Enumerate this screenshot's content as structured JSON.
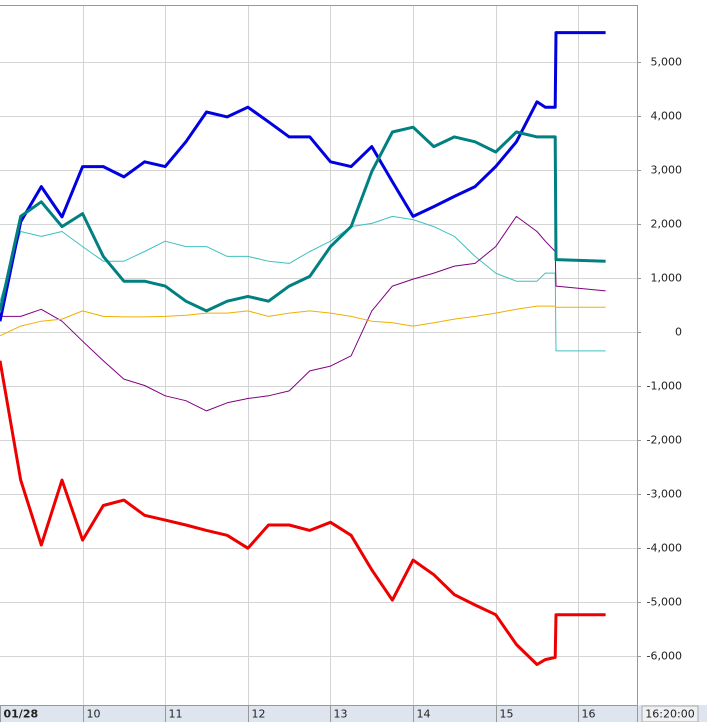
{
  "chart_data": {
    "type": "line",
    "x": [
      9,
      9.25,
      9.5,
      9.75,
      10,
      10.25,
      10.5,
      10.75,
      11,
      11.25,
      11.5,
      11.75,
      12,
      12.25,
      12.5,
      12.75,
      13,
      13.25,
      13.5,
      13.75,
      14,
      14.25,
      14.5,
      14.75,
      15,
      15.25,
      15.5,
      15.6,
      15.72,
      15.73,
      16.33
    ],
    "series": [
      {
        "color": "#0000e0",
        "width": 3,
        "values": [
          200,
          2040,
          2690,
          2130,
          3060,
          3060,
          2870,
          3150,
          3060,
          3520,
          4070,
          3980,
          4160,
          3890,
          3610,
          3610,
          3150,
          3060,
          3430,
          2780,
          2140,
          2320,
          2510,
          2690,
          3060,
          3520,
          4260,
          4160,
          4160,
          5540,
          5540
        ]
      },
      {
        "color": "#ee0000",
        "width": 3,
        "values": [
          -530,
          -2740,
          -3940,
          -2740,
          -3850,
          -3210,
          -3110,
          -3390,
          -3480,
          -3570,
          -3670,
          -3760,
          -4000,
          -3570,
          -3570,
          -3670,
          -3520,
          -3760,
          -4400,
          -4960,
          -4220,
          -4490,
          -4860,
          -5050,
          -5230,
          -5780,
          -6150,
          -6060,
          -6020,
          -5230,
          -5230
        ]
      },
      {
        "color": "#008080",
        "width": 3,
        "values": [
          390,
          2140,
          2410,
          1950,
          2190,
          1400,
          940,
          940,
          850,
          570,
          390,
          570,
          660,
          570,
          850,
          1030,
          1580,
          1950,
          2970,
          3700,
          3790,
          3430,
          3610,
          3520,
          3330,
          3700,
          3610,
          3610,
          3610,
          1340,
          1310
        ]
      },
      {
        "color": "#40c0c0",
        "width": 1,
        "values": [
          570,
          1860,
          1770,
          1860,
          1580,
          1310,
          1310,
          1490,
          1680,
          1580,
          1580,
          1400,
          1400,
          1310,
          1270,
          1490,
          1680,
          1950,
          2010,
          2140,
          2080,
          1950,
          1770,
          1400,
          1090,
          940,
          940,
          1090,
          1090,
          -350,
          -350
        ]
      },
      {
        "color": "#800080",
        "width": 1,
        "values": [
          290,
          290,
          420,
          200,
          -170,
          -530,
          -870,
          -990,
          -1180,
          -1270,
          -1460,
          -1310,
          -1230,
          -1180,
          -1090,
          -720,
          -630,
          -440,
          390,
          850,
          980,
          1090,
          1220,
          1270,
          1580,
          2140,
          1860,
          1680,
          1490,
          850,
          760
        ]
      },
      {
        "color": "#f0b000",
        "width": 1,
        "values": [
          -70,
          110,
          200,
          240,
          390,
          290,
          280,
          280,
          290,
          310,
          350,
          350,
          390,
          290,
          350,
          390,
          350,
          290,
          200,
          170,
          110,
          170,
          240,
          290,
          350,
          420,
          480,
          480,
          480,
          460,
          460
        ]
      }
    ],
    "xlim": [
      9,
      16.71
    ],
    "xticks": [
      {
        "value": 9,
        "label": "01/28"
      },
      10,
      11,
      12,
      13,
      14,
      15,
      16
    ],
    "ylim": [
      -6900,
      6050
    ],
    "yticks": [
      {
        "value": -6000,
        "label": "-6,000"
      },
      {
        "value": -5000,
        "label": "-5,000"
      },
      {
        "value": -4000,
        "label": "-4,000"
      },
      {
        "value": -3000,
        "label": "-3,000"
      },
      {
        "value": -2000,
        "label": "-2,000"
      },
      {
        "value": -1000,
        "label": "-1,000"
      },
      0,
      {
        "value": 1000,
        "label": "1,000"
      },
      {
        "value": 2000,
        "label": "2,000"
      },
      {
        "value": 3000,
        "label": "3,000"
      },
      {
        "value": 4000,
        "label": "4,000"
      },
      {
        "value": 5000,
        "label": "5,000"
      }
    ],
    "time_label": "16:20:00",
    "grid": true
  }
}
